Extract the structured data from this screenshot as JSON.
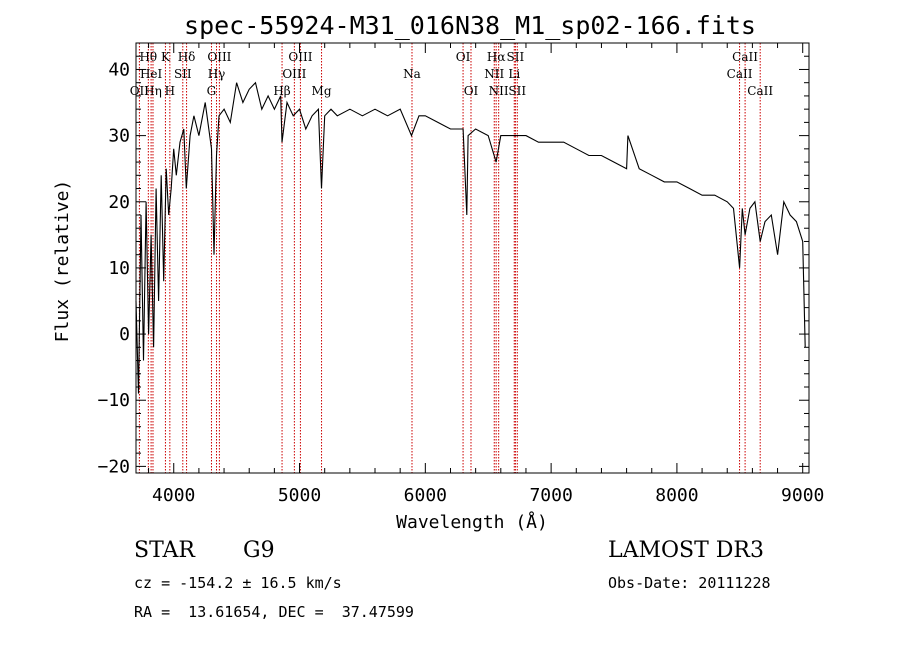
{
  "chart_data": {
    "type": "line",
    "title": "spec-55924-M31_016N38_M1_sp02-166.fits",
    "xlabel": "Wavelength (Å)",
    "ylabel": "Flux (relative)",
    "xlim": [
      3700,
      9050
    ],
    "ylim": [
      -21,
      44
    ],
    "xticks": [
      4000,
      5000,
      6000,
      7000,
      8000,
      9000
    ],
    "yticks": [
      -20,
      -10,
      0,
      10,
      20,
      30,
      40
    ],
    "series": [
      {
        "name": "flux",
        "x": [
          3700,
          3720,
          3740,
          3760,
          3780,
          3800,
          3820,
          3840,
          3860,
          3880,
          3900,
          3920,
          3940,
          3960,
          3980,
          4000,
          4020,
          4050,
          4080,
          4100,
          4130,
          4160,
          4200,
          4250,
          4300,
          4320,
          4340,
          4360,
          4400,
          4450,
          4500,
          4550,
          4600,
          4650,
          4700,
          4750,
          4800,
          4850,
          4861,
          4900,
          4950,
          5000,
          5050,
          5100,
          5150,
          5175,
          5200,
          5250,
          5300,
          5400,
          5500,
          5600,
          5700,
          5800,
          5890,
          5950,
          6000,
          6100,
          6200,
          6300,
          6330,
          6340,
          6400,
          6500,
          6563,
          6600,
          6700,
          6800,
          6900,
          7000,
          7100,
          7200,
          7300,
          7400,
          7500,
          7600,
          7610,
          7700,
          7800,
          7900,
          8000,
          8100,
          8200,
          8300,
          8400,
          8450,
          8498,
          8520,
          8542,
          8580,
          8620,
          8662,
          8700,
          8750,
          8800,
          8850,
          8900,
          8950,
          9000,
          9020
        ],
        "y": [
          5,
          -9,
          18,
          -4,
          20,
          0,
          15,
          -2,
          22,
          5,
          24,
          8,
          25,
          18,
          22,
          28,
          24,
          29,
          31,
          22,
          30,
          33,
          30,
          35,
          28,
          12,
          27,
          33,
          34,
          32,
          38,
          35,
          37,
          38,
          34,
          36,
          34,
          36,
          29,
          35,
          33,
          34,
          31,
          33,
          34,
          22,
          33,
          34,
          33,
          34,
          33,
          34,
          33,
          34,
          30,
          33,
          33,
          32,
          31,
          31,
          18,
          30,
          31,
          30,
          26,
          30,
          30,
          30,
          29,
          29,
          29,
          28,
          27,
          27,
          26,
          25,
          30,
          25,
          24,
          23,
          23,
          22,
          21,
          21,
          20,
          19,
          10,
          19,
          15,
          19,
          20,
          14,
          17,
          18,
          12,
          20,
          18,
          17,
          14,
          -2
        ]
      }
    ],
    "lines": [
      {
        "name": "Hθ",
        "x": 3798,
        "row": 1
      },
      {
        "name": "OII",
        "x": 3727,
        "row": 3
      },
      {
        "name": "HeI",
        "x": 3820,
        "row": 2
      },
      {
        "name": "Hη",
        "x": 3835,
        "row": 3
      },
      {
        "name": "K",
        "x": 3934,
        "row": 1
      },
      {
        "name": "H",
        "x": 3969,
        "row": 3
      },
      {
        "name": "SII",
        "x": 4072,
        "row": 2
      },
      {
        "name": "Hδ",
        "x": 4102,
        "row": 1
      },
      {
        "name": "G",
        "x": 4300,
        "row": 3
      },
      {
        "name": "Hγ",
        "x": 4340,
        "row": 2
      },
      {
        "name": "OIII",
        "x": 4363,
        "row": 1
      },
      {
        "name": "Hβ",
        "x": 4861,
        "row": 3
      },
      {
        "name": "OIII",
        "x": 4959,
        "row": 2
      },
      {
        "name": "OIII",
        "x": 5007,
        "row": 1
      },
      {
        "name": "Mg",
        "x": 5175,
        "row": 3
      },
      {
        "name": "Na",
        "x": 5894,
        "row": 2
      },
      {
        "name": "OI",
        "x": 6300,
        "row": 1
      },
      {
        "name": "OI",
        "x": 6363,
        "row": 3
      },
      {
        "name": "NII",
        "x": 6548,
        "row": 2
      },
      {
        "name": "Hα",
        "x": 6563,
        "row": 1
      },
      {
        "name": "NII",
        "x": 6583,
        "row": 3
      },
      {
        "name": "Li",
        "x": 6707,
        "row": 2
      },
      {
        "name": "SII",
        "x": 6716,
        "row": 1
      },
      {
        "name": "SII",
        "x": 6731,
        "row": 3
      },
      {
        "name": "CaII",
        "x": 8498,
        "row": 2
      },
      {
        "name": "CaII",
        "x": 8542,
        "row": 1
      },
      {
        "name": "CaII",
        "x": 8662,
        "row": 3
      }
    ],
    "grid": false,
    "legend": "none"
  },
  "info": {
    "class": "STAR",
    "subclass": "G9",
    "survey": "LAMOST DR3",
    "velocity": "cz = -154.2 ± 16.5 km/s",
    "obs_date": "Obs-Date: 20111228",
    "coords": "RA =  13.61654, DEC =  37.47599"
  },
  "colors": {
    "line_marker": "#cc0000",
    "spectrum": "#000000"
  }
}
